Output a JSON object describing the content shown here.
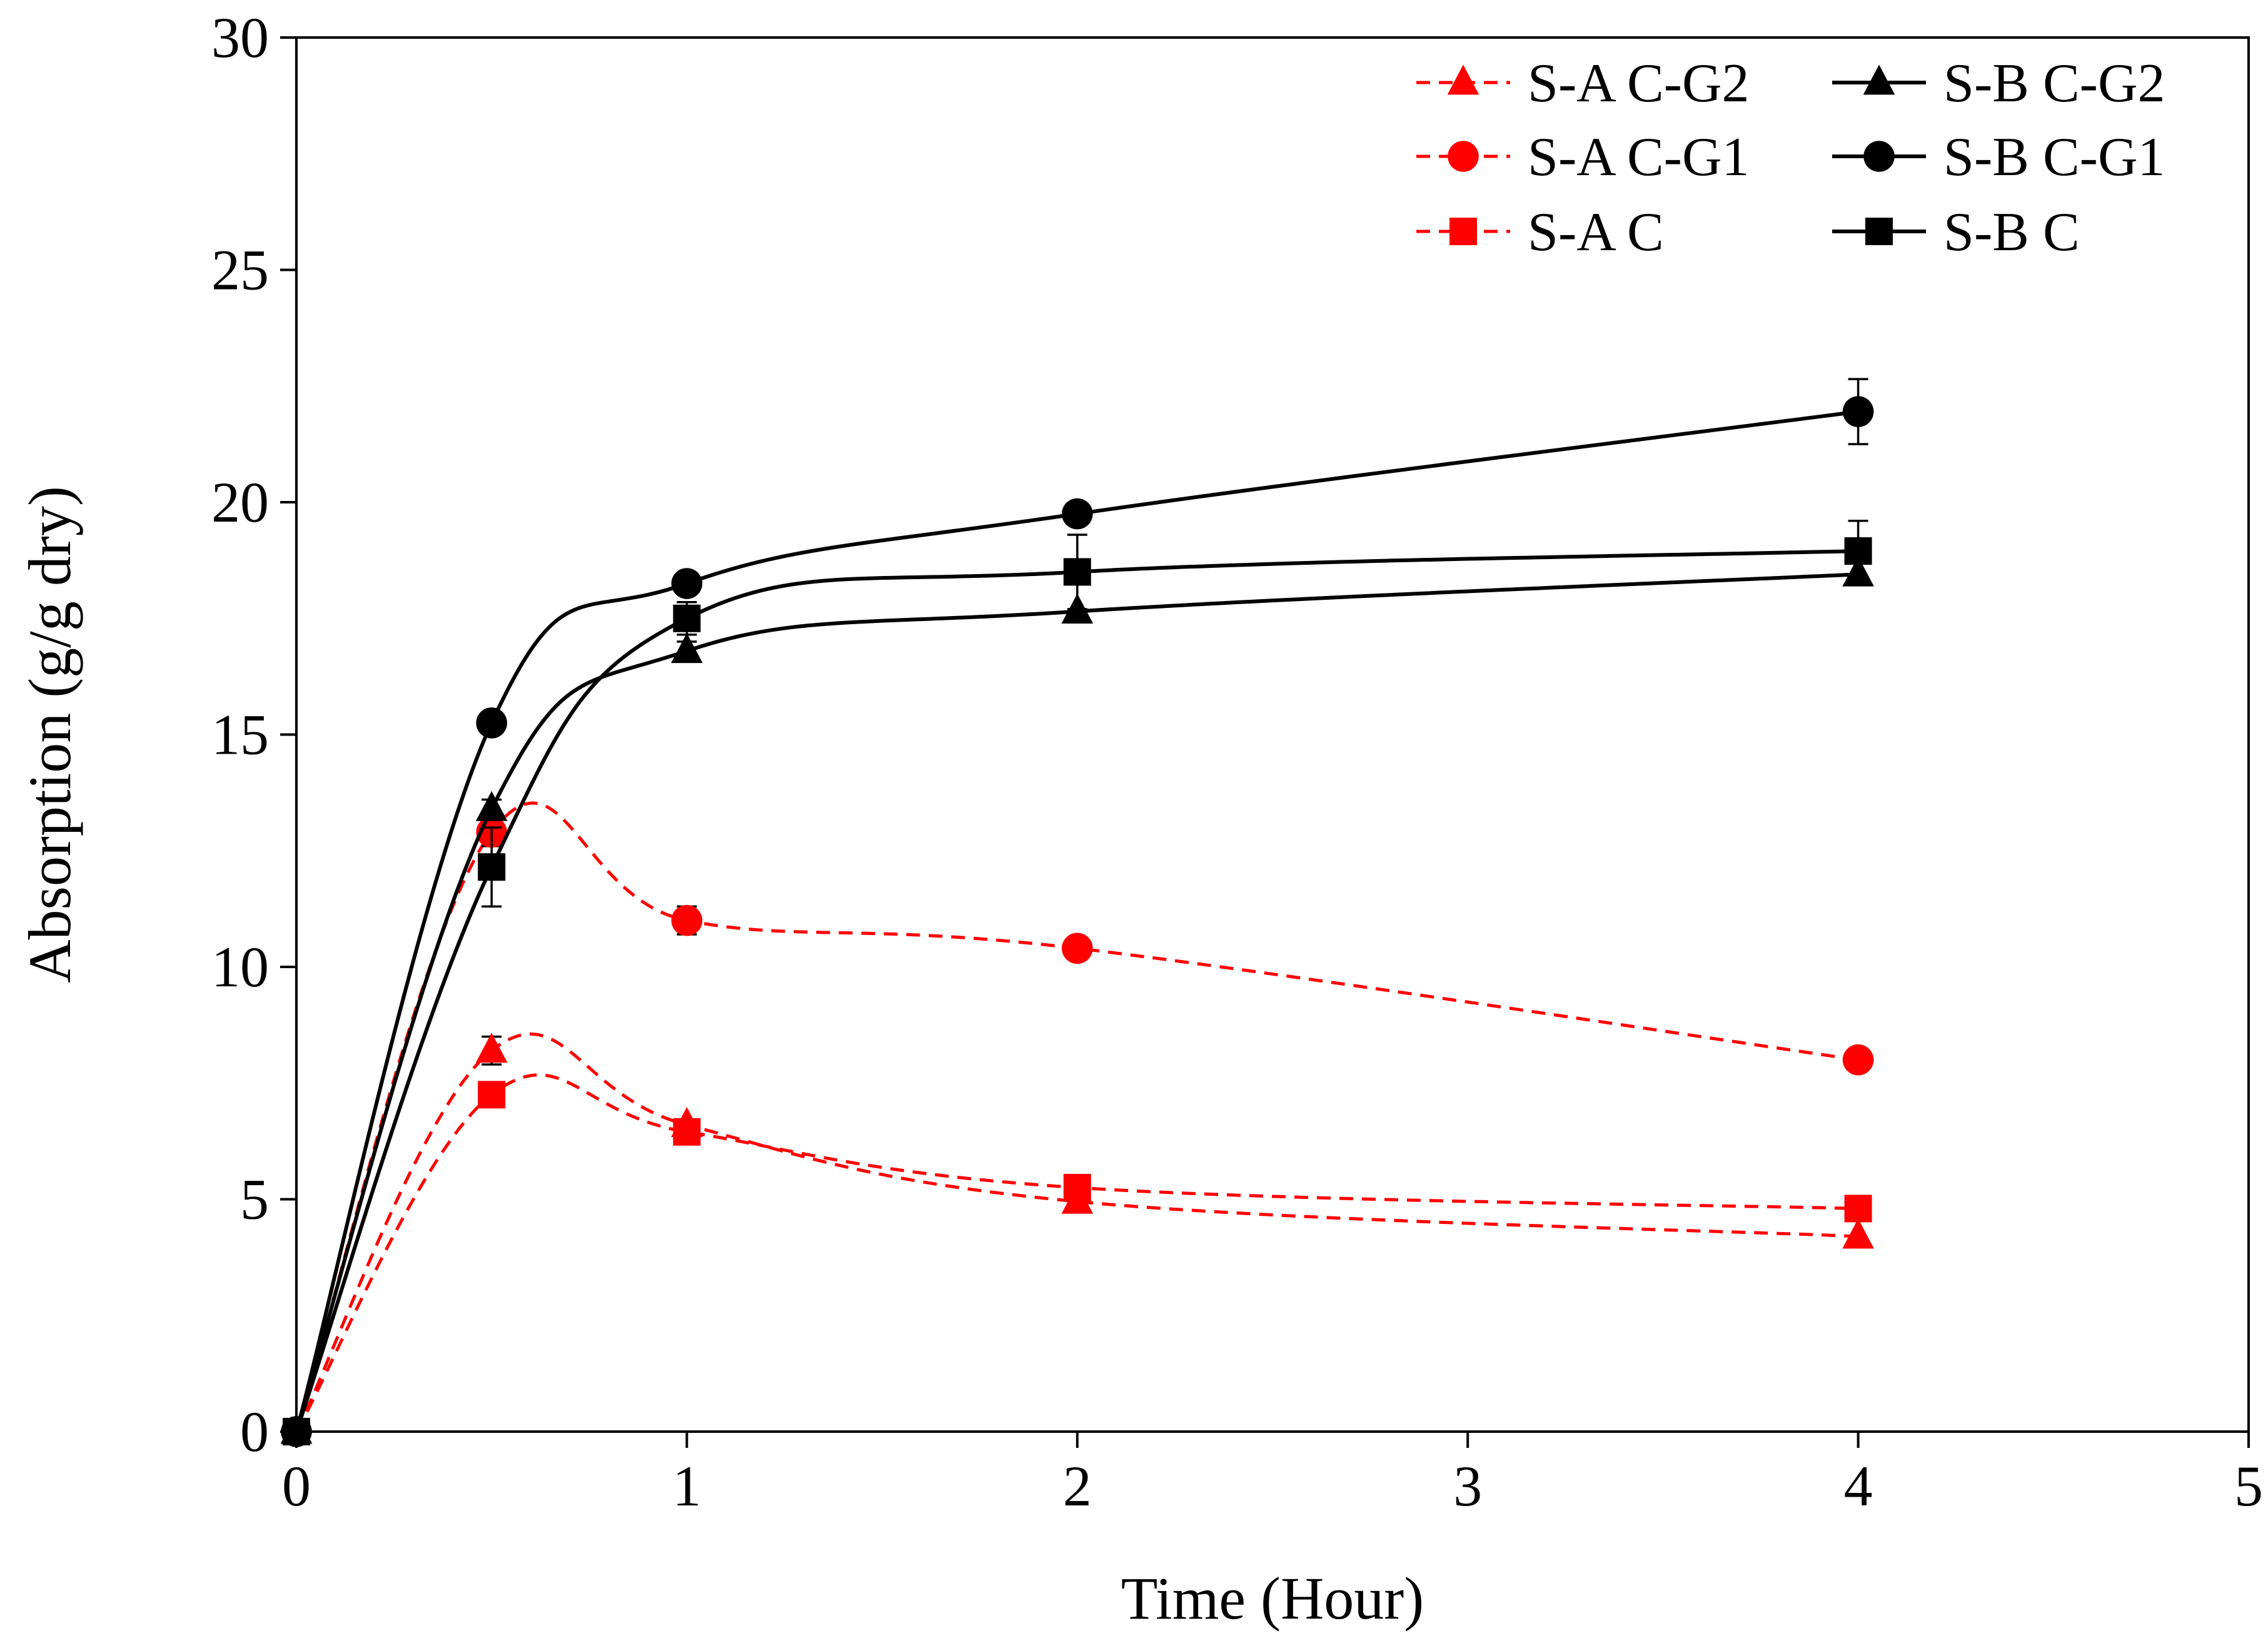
{
  "chart_data": {
    "type": "line",
    "title": "",
    "xlabel": "Time (Hour)",
    "ylabel": "Absorption (g/g dry)",
    "xlim": [
      0,
      5
    ],
    "ylim": [
      0,
      30
    ],
    "xticks": [
      0,
      1,
      2,
      3,
      4,
      5
    ],
    "yticks": [
      0,
      5,
      10,
      15,
      20,
      25,
      30
    ],
    "grid": false,
    "legend_position": "top-right",
    "colors": {
      "sa": "#ff0000",
      "sb": "#000000"
    },
    "x": [
      0,
      0.5,
      1,
      2,
      4
    ],
    "series": [
      {
        "name": "S-A C-G2",
        "group": "sa",
        "marker": "triangle",
        "dashed": true,
        "values": [
          0,
          8.2,
          6.6,
          4.95,
          4.2
        ],
        "errors": [
          0,
          0.3,
          0.15,
          0.1,
          0.1
        ]
      },
      {
        "name": "S-A C-G1",
        "group": "sa",
        "marker": "circle",
        "dashed": true,
        "values": [
          0,
          12.9,
          11.0,
          10.4,
          8.0
        ],
        "errors": [
          0,
          0.3,
          0.3,
          0.1,
          0.15
        ]
      },
      {
        "name": "S-A C",
        "group": "sa",
        "marker": "square",
        "dashed": true,
        "values": [
          0,
          7.25,
          6.45,
          5.25,
          4.8
        ],
        "errors": [
          0,
          0.1,
          0.1,
          0.1,
          0.1
        ]
      },
      {
        "name": "S-B C-G2",
        "group": "sb",
        "marker": "triangle",
        "dashed": false,
        "values": [
          0,
          13.4,
          16.8,
          17.65,
          18.45
        ],
        "errors": [
          0,
          0.2,
          0.2,
          0.1,
          0.1
        ]
      },
      {
        "name": "S-B C-G1",
        "group": "sb",
        "marker": "circle",
        "dashed": false,
        "values": [
          0,
          15.25,
          18.25,
          19.75,
          21.95
        ],
        "errors": [
          0,
          0.1,
          0.1,
          0.1,
          0.7
        ]
      },
      {
        "name": "S-B C",
        "group": "sb",
        "marker": "square",
        "dashed": false,
        "values": [
          0,
          12.15,
          17.5,
          18.5,
          18.95
        ],
        "errors": [
          0,
          0.85,
          0.35,
          0.8,
          0.65
        ]
      }
    ]
  }
}
